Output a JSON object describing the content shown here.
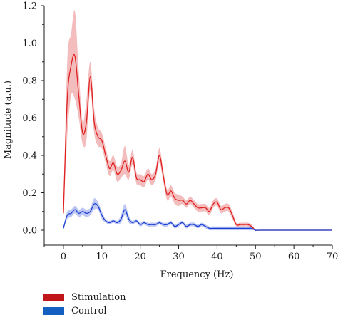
{
  "chart_data": {
    "type": "line",
    "xlabel": "Frequency (Hz)",
    "ylabel": "Magnitude (a.u.)",
    "xlim": [
      -5,
      70
    ],
    "ylim": [
      -0.08,
      1.2
    ],
    "xticks": [
      "0",
      "10",
      "20",
      "30",
      "40",
      "50",
      "60",
      "70"
    ],
    "yticks": [
      "0.0",
      "0.2",
      "0.4",
      "0.6",
      "0.8",
      "1.0",
      "1.2"
    ],
    "grid": false,
    "legend_position": "bottom-left",
    "series": [
      {
        "name": "Stimulation",
        "color": "#e02020",
        "band_color": "#f2b2b2",
        "x": [
          0,
          1,
          2,
          3,
          4,
          5,
          6,
          7,
          8,
          9,
          10,
          11,
          12,
          13,
          14,
          15,
          16,
          17,
          18,
          19,
          20,
          21,
          22,
          23,
          24,
          25,
          26,
          27,
          28,
          29,
          30,
          31,
          32,
          33,
          34,
          35,
          36,
          37,
          38,
          39,
          40,
          41,
          42,
          43,
          44,
          45,
          46,
          47,
          48,
          49,
          50,
          51,
          60,
          70
        ],
        "y": [
          0.09,
          0.7,
          0.88,
          0.93,
          0.72,
          0.52,
          0.58,
          0.82,
          0.58,
          0.5,
          0.48,
          0.4,
          0.33,
          0.36,
          0.3,
          0.32,
          0.37,
          0.31,
          0.39,
          0.28,
          0.27,
          0.26,
          0.3,
          0.27,
          0.3,
          0.4,
          0.29,
          0.19,
          0.21,
          0.17,
          0.16,
          0.16,
          0.14,
          0.16,
          0.14,
          0.12,
          0.12,
          0.12,
          0.1,
          0.14,
          0.15,
          0.11,
          0.12,
          0.12,
          0.08,
          0.03,
          0.03,
          0.03,
          0.03,
          0.02,
          0.0,
          0.0,
          0.0,
          0.0
        ],
        "upper": [
          0.1,
          0.9,
          1.05,
          1.17,
          0.85,
          0.58,
          0.7,
          0.9,
          0.65,
          0.55,
          0.52,
          0.44,
          0.37,
          0.4,
          0.34,
          0.36,
          0.45,
          0.35,
          0.43,
          0.31,
          0.3,
          0.29,
          0.33,
          0.3,
          0.33,
          0.44,
          0.32,
          0.22,
          0.24,
          0.2,
          0.19,
          0.18,
          0.16,
          0.18,
          0.16,
          0.14,
          0.14,
          0.14,
          0.12,
          0.16,
          0.17,
          0.13,
          0.14,
          0.14,
          0.1,
          0.04,
          0.04,
          0.04,
          0.04,
          0.03,
          0.0,
          0.0,
          0.0,
          0.0
        ],
        "lower": [
          0.08,
          0.5,
          0.72,
          0.7,
          0.6,
          0.46,
          0.48,
          0.75,
          0.52,
          0.45,
          0.44,
          0.36,
          0.29,
          0.32,
          0.26,
          0.28,
          0.3,
          0.27,
          0.35,
          0.25,
          0.24,
          0.23,
          0.27,
          0.24,
          0.27,
          0.36,
          0.26,
          0.16,
          0.18,
          0.14,
          0.13,
          0.14,
          0.12,
          0.14,
          0.12,
          0.1,
          0.1,
          0.1,
          0.08,
          0.12,
          0.13,
          0.09,
          0.1,
          0.1,
          0.06,
          0.02,
          0.02,
          0.02,
          0.02,
          0.01,
          0.0,
          0.0,
          0.0,
          0.0
        ]
      },
      {
        "name": "Control",
        "color": "#1a3fd6",
        "band_color": "#b3bdf0",
        "x": [
          0,
          1,
          2,
          3,
          4,
          5,
          6,
          7,
          8,
          9,
          10,
          11,
          12,
          13,
          14,
          15,
          16,
          17,
          18,
          19,
          20,
          21,
          22,
          23,
          24,
          25,
          26,
          27,
          28,
          29,
          30,
          31,
          32,
          33,
          34,
          35,
          36,
          37,
          38,
          39,
          40,
          41,
          42,
          43,
          44,
          45,
          46,
          47,
          48,
          49,
          50,
          51,
          60,
          70
        ],
        "y": [
          0.01,
          0.08,
          0.09,
          0.11,
          0.09,
          0.1,
          0.09,
          0.1,
          0.14,
          0.13,
          0.08,
          0.05,
          0.04,
          0.05,
          0.04,
          0.06,
          0.11,
          0.06,
          0.04,
          0.05,
          0.03,
          0.04,
          0.03,
          0.03,
          0.03,
          0.04,
          0.03,
          0.03,
          0.04,
          0.02,
          0.03,
          0.04,
          0.02,
          0.03,
          0.03,
          0.02,
          0.03,
          0.02,
          0.01,
          0.01,
          0.01,
          0.01,
          0.01,
          0.01,
          0.01,
          0.01,
          0.01,
          0.01,
          0.01,
          0.01,
          0.0,
          0.0,
          0.0,
          0.0
        ],
        "upper": [
          0.015,
          0.1,
          0.11,
          0.13,
          0.11,
          0.12,
          0.11,
          0.12,
          0.17,
          0.15,
          0.1,
          0.06,
          0.05,
          0.06,
          0.05,
          0.08,
          0.14,
          0.08,
          0.05,
          0.06,
          0.04,
          0.05,
          0.04,
          0.04,
          0.04,
          0.05,
          0.04,
          0.04,
          0.05,
          0.03,
          0.04,
          0.05,
          0.03,
          0.04,
          0.04,
          0.03,
          0.04,
          0.03,
          0.02,
          0.02,
          0.02,
          0.02,
          0.02,
          0.02,
          0.02,
          0.02,
          0.02,
          0.02,
          0.02,
          0.02,
          0.0,
          0.0,
          0.0,
          0.0
        ],
        "lower": [
          0.005,
          0.06,
          0.07,
          0.09,
          0.07,
          0.08,
          0.07,
          0.08,
          0.11,
          0.11,
          0.06,
          0.04,
          0.03,
          0.04,
          0.03,
          0.04,
          0.08,
          0.04,
          0.03,
          0.04,
          0.02,
          0.03,
          0.02,
          0.02,
          0.02,
          0.03,
          0.02,
          0.02,
          0.03,
          0.01,
          0.02,
          0.03,
          0.01,
          0.02,
          0.02,
          0.01,
          0.02,
          0.01,
          0.0,
          0.0,
          0.0,
          0.0,
          0.0,
          0.0,
          0.0,
          0.0,
          0.0,
          0.0,
          0.0,
          0.0,
          0.0,
          0.0,
          0.0,
          0.0
        ]
      }
    ],
    "legend": [
      {
        "label": "Stimulation",
        "color": "#c0161a"
      },
      {
        "label": "Control",
        "color": "#1460c0"
      }
    ]
  }
}
